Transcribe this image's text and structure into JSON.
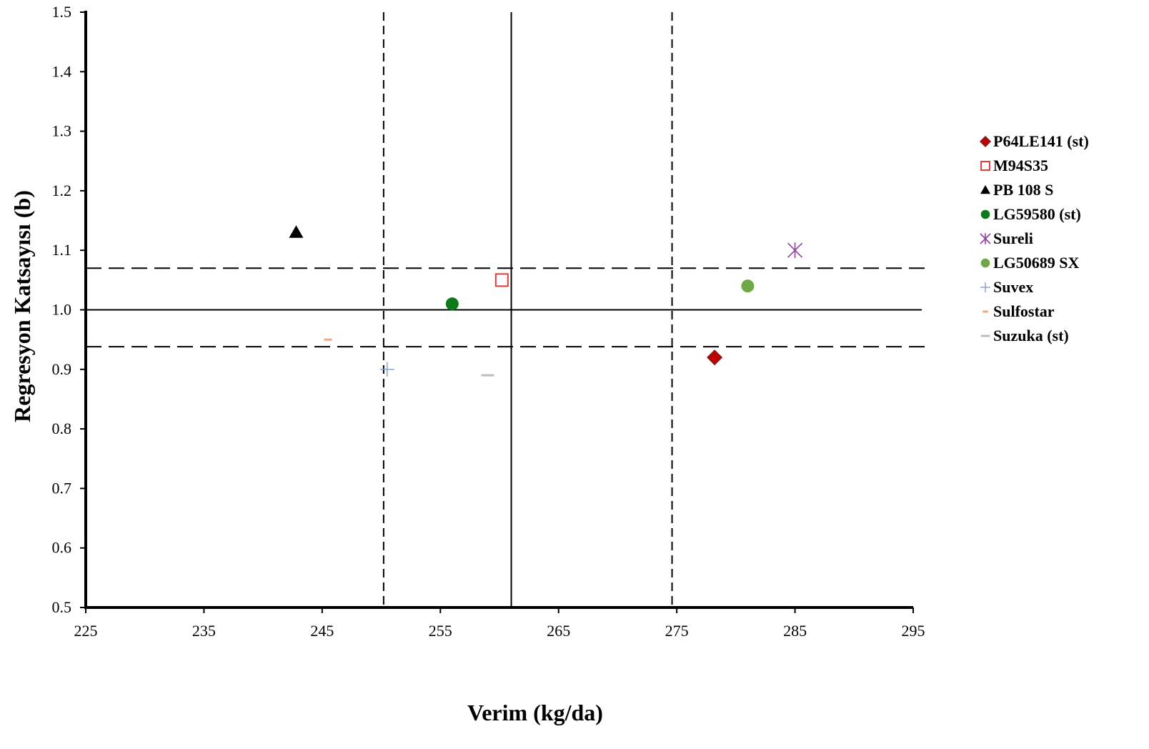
{
  "chart_data": {
    "type": "scatter",
    "title": "",
    "xlabel": "Verim (kg/da)",
    "ylabel": "Regresyon Katsayısı (b)",
    "xlim": [
      225,
      295
    ],
    "ylim": [
      0.5,
      1.5
    ],
    "x_ticks": [
      "225",
      "235",
      "245",
      "255",
      "265",
      "275",
      "285",
      "295"
    ],
    "y_ticks": [
      "0.5",
      "0.6",
      "0.7",
      "0.8",
      "0.9",
      "1.0",
      "1.1",
      "1.2",
      "1.3",
      "1.4",
      "1.5"
    ],
    "grid": false,
    "legend_position": "right",
    "reference_lines": {
      "x_mean": 261,
      "x_dashed": [
        250.2,
        274.6
      ],
      "y_mean": 1.0,
      "y_dashed": [
        0.938,
        1.07
      ]
    },
    "series": [
      {
        "name": "P64LE141 (st)",
        "marker": "diamond",
        "color": "#c00000",
        "stroke": "#7f1f1f",
        "x": 278.2,
        "y": 0.92
      },
      {
        "name": "M94S35",
        "marker": "square-open",
        "color": "#e53935",
        "x": 260.2,
        "y": 1.05
      },
      {
        "name": "PB 108 S",
        "marker": "triangle",
        "color": "#000000",
        "x": 242.8,
        "y": 1.13
      },
      {
        "name": "LG59580 (st)",
        "marker": "circle",
        "color": "#0a7a1a",
        "x": 256,
        "y": 1.01
      },
      {
        "name": "Sureli",
        "marker": "star",
        "color": "#8e3f9e",
        "x": 285,
        "y": 1.1
      },
      {
        "name": "LG50689 SX",
        "marker": "circle",
        "color": "#6fa845",
        "x": 281,
        "y": 1.04
      },
      {
        "name": "Suvex",
        "marker": "plus",
        "color": "#7f9fd4",
        "x": 250.5,
        "y": 0.9
      },
      {
        "name": "Sulfostar",
        "marker": "dash-short",
        "color": "#f4a582",
        "x": 245.5,
        "y": 0.95
      },
      {
        "name": "Suzuka (st)",
        "marker": "dash",
        "color": "#bdbdbd",
        "x": 259,
        "y": 0.89
      }
    ]
  }
}
